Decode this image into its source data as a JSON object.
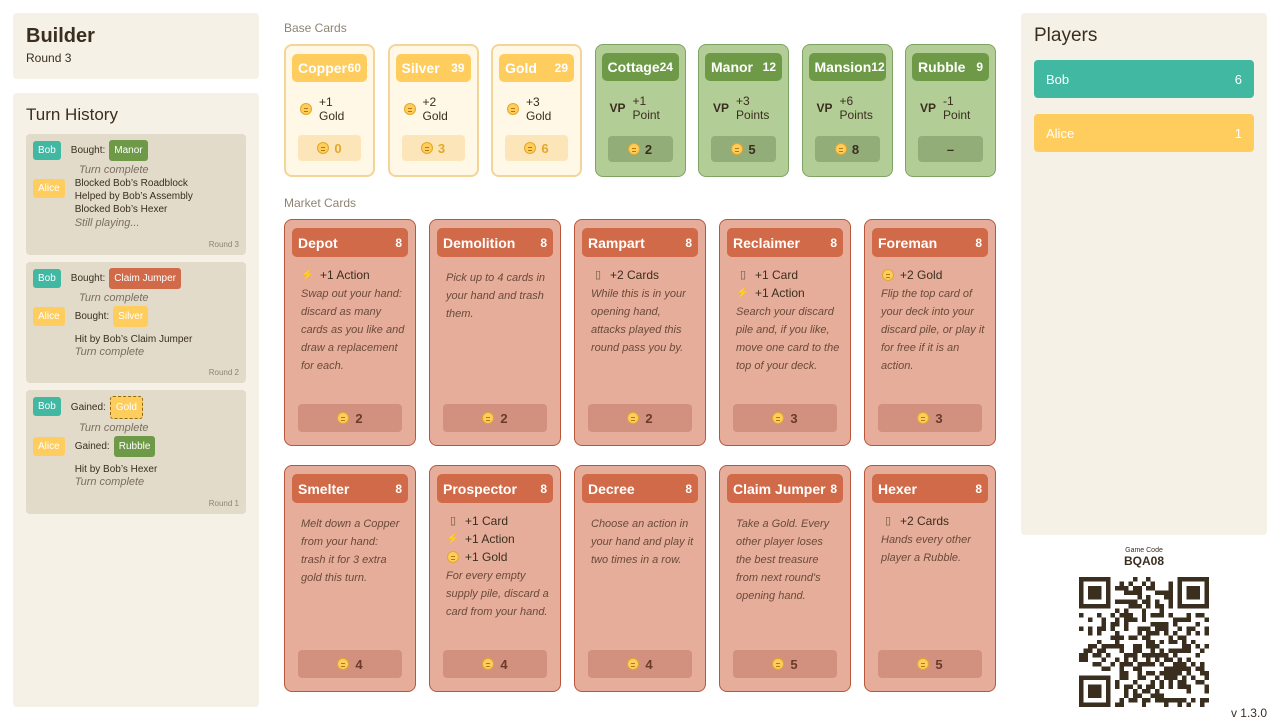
{
  "app": {
    "title": "Builder",
    "round": "Round 3"
  },
  "history": {
    "title": "Turn History",
    "turns": [
      {
        "round": "Round 3",
        "entries": [
          {
            "player": "Bob",
            "action": "Bought:",
            "card": "Manor",
            "notes": [
              "Turn complete"
            ]
          },
          {
            "player": "Alice",
            "lines": [
              "Blocked Bob’s Roadblock",
              "Helped by Bob’s Assembly",
              "Blocked Bob’s Hexer"
            ],
            "notes": [
              "Still playing..."
            ]
          }
        ]
      },
      {
        "round": "Round 2",
        "entries": [
          {
            "player": "Bob",
            "action": "Bought:",
            "card": "Claim Jumper",
            "notes": [
              "Turn complete"
            ]
          },
          {
            "player": "Alice",
            "action": "Bought:",
            "card": "Silver",
            "lines": [
              "Hit by Bob’s Claim Jumper"
            ],
            "notes": [
              "Turn complete"
            ]
          }
        ]
      },
      {
        "round": "Round 1",
        "entries": [
          {
            "player": "Bob",
            "action": "Gained:",
            "card": "Gold",
            "notes": [
              "Turn complete"
            ]
          },
          {
            "player": "Alice",
            "action": "Gained:",
            "card": "Rubble",
            "lines": [
              "Hit by Bob’s Hexer"
            ],
            "notes": [
              "Turn complete"
            ]
          }
        ]
      }
    ]
  },
  "base": {
    "label": "Base Cards",
    "cards": [
      {
        "name": "Copper",
        "count": "60",
        "effect_amount": "+1",
        "effect_unit": "Gold",
        "cost": "0",
        "kind": "treasure"
      },
      {
        "name": "Silver",
        "count": "39",
        "effect_amount": "+2",
        "effect_unit": "Gold",
        "cost": "3",
        "kind": "treasure"
      },
      {
        "name": "Gold",
        "count": "29",
        "effect_amount": "+3",
        "effect_unit": "Gold",
        "cost": "6",
        "kind": "treasure"
      },
      {
        "name": "Cottage",
        "count": "24",
        "vp": "VP",
        "effect_amount": "+1",
        "effect_unit": "Point",
        "cost": "2",
        "kind": "vp"
      },
      {
        "name": "Manor",
        "count": "12",
        "vp": "VP",
        "effect_amount": "+3",
        "effect_unit": "Points",
        "cost": "5",
        "kind": "vp"
      },
      {
        "name": "Mansion",
        "count": "12",
        "vp": "VP",
        "effect_amount": "+6",
        "effect_unit": "Points",
        "cost": "8",
        "kind": "vp"
      },
      {
        "name": "Rubble",
        "count": "9",
        "vp": "VP",
        "effect_amount": "-1",
        "effect_unit": "Point",
        "cost": "–",
        "kind": "vp"
      }
    ]
  },
  "market": {
    "label": "Market Cards",
    "cards": [
      {
        "name": "Depot",
        "count": "8",
        "effects": [
          {
            "icon": "action",
            "text": "+1 Action"
          }
        ],
        "desc": "Swap out your hand: discard as many cards as you like and draw a replacement for each.",
        "cost": "2"
      },
      {
        "name": "Demolition",
        "count": "8",
        "effects": [],
        "desc": "Pick up to 4 cards in your hand and trash them.",
        "cost": "2"
      },
      {
        "name": "Rampart",
        "count": "8",
        "effects": [
          {
            "icon": "card",
            "text": "+2 Cards"
          }
        ],
        "desc": "While this is in your opening hand, attacks played this round pass you by.",
        "cost": "2"
      },
      {
        "name": "Reclaimer",
        "count": "8",
        "effects": [
          {
            "icon": "card",
            "text": "+1 Card"
          },
          {
            "icon": "action",
            "text": "+1 Action"
          }
        ],
        "desc": "Search your discard pile and, if you like, move one card to the top of your deck.",
        "cost": "3"
      },
      {
        "name": "Foreman",
        "count": "8",
        "effects": [
          {
            "icon": "coin",
            "text": "+2 Gold"
          }
        ],
        "desc": "Flip the top card of your deck into your discard pile, or play it for free if it is an action.",
        "cost": "3"
      },
      {
        "name": "Smelter",
        "count": "8",
        "effects": [],
        "desc": "Melt down a Copper from your hand: trash it for 3 extra gold this turn.",
        "cost": "4"
      },
      {
        "name": "Prospector",
        "count": "8",
        "effects": [
          {
            "icon": "card",
            "text": "+1 Card"
          },
          {
            "icon": "action",
            "text": "+1 Action"
          },
          {
            "icon": "coin",
            "text": "+1 Gold"
          }
        ],
        "desc": "For every empty supply pile, discard a card from your hand.",
        "cost": "4"
      },
      {
        "name": "Decree",
        "count": "8",
        "effects": [],
        "desc": "Choose an action in your hand and play it two times in a row.",
        "cost": "4"
      },
      {
        "name": "Claim Jumper",
        "count": "8",
        "effects": [],
        "desc": "Take a Gold. Every other player loses the best treasure from next round's opening hand.",
        "cost": "5"
      },
      {
        "name": "Hexer",
        "count": "8",
        "effects": [
          {
            "icon": "card",
            "text": "+2 Cards"
          }
        ],
        "desc": "Hands every other player a Rubble.",
        "cost": "5"
      }
    ]
  },
  "players": {
    "title": "Players",
    "list": [
      {
        "name": "Bob",
        "score": "6"
      },
      {
        "name": "Alice",
        "score": "1"
      }
    ]
  },
  "game": {
    "code_label": "Game Code",
    "code": "BQA08",
    "version": "v 1.3.0"
  },
  "colors": {
    "bob": "#40b8a2",
    "alice": "#ffcc5e",
    "market": "#d06a48",
    "vp": "#6e9a48",
    "treasure": "#ffcc5e"
  }
}
